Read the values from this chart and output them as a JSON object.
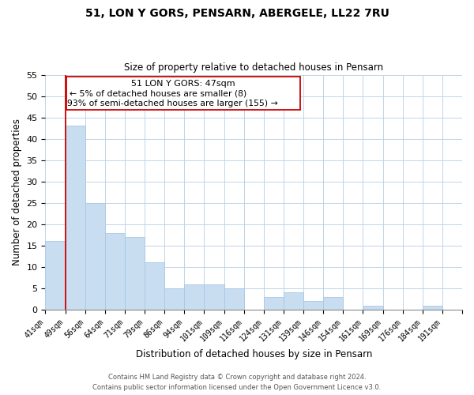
{
  "title": "51, LON Y GORS, PENSARN, ABERGELE, LL22 7RU",
  "subtitle": "Size of property relative to detached houses in Pensarn",
  "xlabel": "Distribution of detached houses by size in Pensarn",
  "ylabel": "Number of detached properties",
  "bar_color": "#c8ddf0",
  "bar_edge_color": "#a8c8e8",
  "annotation_line_color": "#cc0000",
  "categories": [
    "41sqm",
    "49sqm",
    "56sqm",
    "64sqm",
    "71sqm",
    "79sqm",
    "86sqm",
    "94sqm",
    "101sqm",
    "109sqm",
    "116sqm",
    "124sqm",
    "131sqm",
    "139sqm",
    "146sqm",
    "154sqm",
    "161sqm",
    "169sqm",
    "176sqm",
    "184sqm",
    "191sqm"
  ],
  "values": [
    16,
    43,
    25,
    18,
    17,
    11,
    5,
    6,
    6,
    5,
    0,
    3,
    4,
    2,
    3,
    0,
    1,
    0,
    0,
    1,
    0
  ],
  "ylim": [
    0,
    55
  ],
  "yticks": [
    0,
    5,
    10,
    15,
    20,
    25,
    30,
    35,
    40,
    45,
    50,
    55
  ],
  "annotation_label": "51 LON Y GORS: 47sqm",
  "annotation_line1": "← 5% of detached houses are smaller (8)",
  "annotation_line2": "93% of semi-detached houses are larger (155) →",
  "vline_x": 1,
  "footnote1": "Contains HM Land Registry data © Crown copyright and database right 2024.",
  "footnote2": "Contains public sector information licensed under the Open Government Licence v3.0.",
  "background_color": "#ffffff",
  "grid_color": "#c0d4e8"
}
